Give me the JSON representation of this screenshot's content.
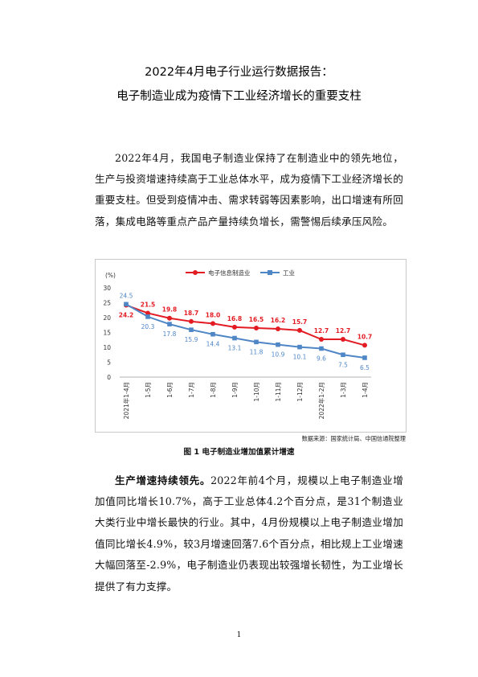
{
  "title": {
    "line1": "2022年4月电子行业运行数据报告：",
    "line2": "电子制造业成为疫情下工业经济增长的重要支柱"
  },
  "intro": "2022年4月，我国电子制造业保持了在制造业中的领先地位，生产与投资增速持续高于工业总体水平，成为疫情下工业经济增长的重要支柱。但受到疫情冲击、需求转弱等因素影响，出口增速有所回落，集成电路等重点产品产量持续负增长，需警惕后续承压风险。",
  "figure": {
    "source": "数据来源：国家统计局、中国信通院整理",
    "caption": "图 1  电子制造业增加值累计增速"
  },
  "section": {
    "lead": "生产增速持续领先。",
    "body": "2022年前4个月，规模以上电子制造业增加值同比增长10.7%，高于工业总体4.2个百分点，是31个制造业大类行业中增长最快的行业。其中，4月份规模以上电子制造业增加值同比增长4.9%，较3月增速回落7.6个百分点，相比规上工业增速大幅回落至-2.9%，电子制造业仍表现出较强增长韧性，为工业增长提供了有力支撑。"
  },
  "page_number": "1",
  "chart_data": {
    "type": "line",
    "unit_label": "(%)",
    "categories": [
      "2021年1-4月",
      "1-5月",
      "1-6月",
      "1-7月",
      "1-8月",
      "1-9月",
      "1-10月",
      "1-11月",
      "1-12月",
      "2022年1-2月",
      "1-3月",
      "1-4月"
    ],
    "ylim": [
      0,
      30
    ],
    "yticks": [
      "0",
      "5",
      "10",
      "15",
      "20",
      "25",
      "30"
    ],
    "legend_position": "top-right",
    "series": [
      {
        "name": "电子信息制造业",
        "color": "#e31b23",
        "values": [
          24.2,
          21.5,
          19.8,
          18.7,
          18.0,
          16.8,
          16.5,
          16.2,
          15.7,
          12.7,
          12.7,
          10.7
        ]
      },
      {
        "name": "工业",
        "color": "#4f86c6",
        "values": [
          24.5,
          20.3,
          17.8,
          15.9,
          14.4,
          13.1,
          11.8,
          10.9,
          10.1,
          9.6,
          7.5,
          6.5
        ]
      }
    ]
  }
}
